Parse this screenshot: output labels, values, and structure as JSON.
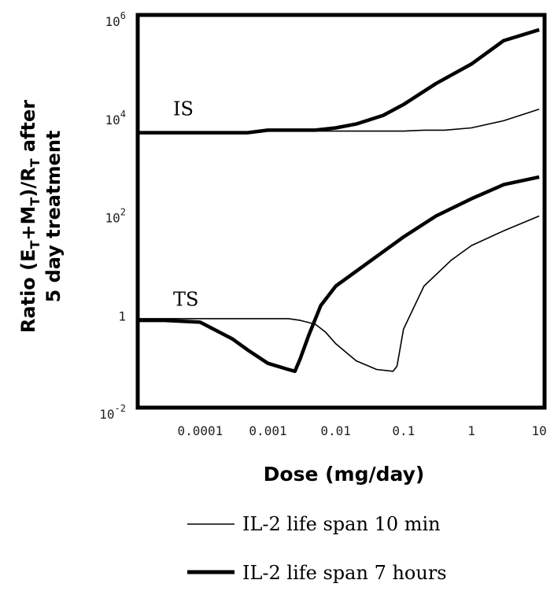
{
  "chart_data": {
    "type": "line",
    "xlabel": "Dose (mg/day)",
    "ylabel_line1": "Ratio (E",
    "ylabel_sub1": "T",
    "ylabel_mid1": "+M",
    "ylabel_sub2": "T",
    "ylabel_mid2": ")/R",
    "ylabel_sub3": "T",
    "ylabel_end": " after",
    "ylabel_line2": "5 day treatment",
    "x_scale": "log",
    "y_scale": "log",
    "xlim": [
      1.2e-05,
      12
    ],
    "ylim": [
      0.01,
      1000000
    ],
    "x_ticks": [
      {
        "value": 0.0001,
        "label": "0.0001"
      },
      {
        "value": 0.001,
        "label": "0.001"
      },
      {
        "value": 0.01,
        "label": "0.01"
      },
      {
        "value": 0.1,
        "label": "0.1"
      },
      {
        "value": 1,
        "label": "1"
      },
      {
        "value": 10,
        "label": "10"
      }
    ],
    "y_ticks": [
      {
        "value": 0.01,
        "base": "10",
        "exp": "-2"
      },
      {
        "value": 1,
        "base": "1",
        "exp": ""
      },
      {
        "value": 100,
        "base": "10",
        "exp": "2"
      },
      {
        "value": 10000,
        "base": "10",
        "exp": "4"
      },
      {
        "value": 1000000,
        "base": "10",
        "exp": "6"
      }
    ],
    "annotations": [
      {
        "text": "IS",
        "x": 4e-05,
        "y": 9000
      },
      {
        "text": "TS",
        "x": 4e-05,
        "y": 1.2
      }
    ],
    "legend": [
      {
        "label": "IL-2 life span 10 min",
        "style": "thin"
      },
      {
        "label": "IL-2 life span 7 hours",
        "style": "thick"
      }
    ],
    "legend_position": "below",
    "series": [
      {
        "style": "thin",
        "group": "IS",
        "x": [
          1.2e-05,
          0.0005,
          0.001,
          0.01,
          0.1,
          0.2,
          0.4,
          1,
          3,
          10
        ],
        "y": [
          4000,
          4000,
          4300,
          4300,
          4300,
          4500,
          4500,
          5000,
          7000,
          12000
        ]
      },
      {
        "style": "thick",
        "group": "IS",
        "x": [
          1.2e-05,
          0.0005,
          0.001,
          0.005,
          0.01,
          0.02,
          0.05,
          0.1,
          0.3,
          1,
          3,
          10
        ],
        "y": [
          4000,
          4000,
          4500,
          4500,
          5000,
          6000,
          9000,
          15000,
          40000,
          100000,
          300000,
          500000
        ]
      },
      {
        "style": "thin",
        "group": "TS",
        "x": [
          1.2e-05,
          0.0005,
          0.001,
          0.002,
          0.003,
          0.005,
          0.007,
          0.01,
          0.02,
          0.04,
          0.07,
          0.08,
          0.1,
          0.2,
          0.5,
          1,
          3,
          10
        ],
        "y": [
          0.65,
          0.65,
          0.65,
          0.65,
          0.6,
          0.5,
          0.35,
          0.2,
          0.09,
          0.06,
          0.055,
          0.07,
          0.4,
          3,
          10,
          20,
          40,
          80
        ]
      },
      {
        "style": "thick",
        "group": "TS",
        "x": [
          1.2e-05,
          3e-05,
          0.0001,
          0.0003,
          0.0005,
          0.001,
          0.002,
          0.0025,
          0.003,
          0.004,
          0.006,
          0.01,
          0.03,
          0.1,
          0.3,
          1,
          3,
          10
        ],
        "y": [
          0.6,
          0.6,
          0.55,
          0.25,
          0.15,
          0.08,
          0.06,
          0.055,
          0.1,
          0.3,
          1.2,
          3,
          9,
          30,
          80,
          180,
          350,
          500
        ]
      }
    ]
  }
}
